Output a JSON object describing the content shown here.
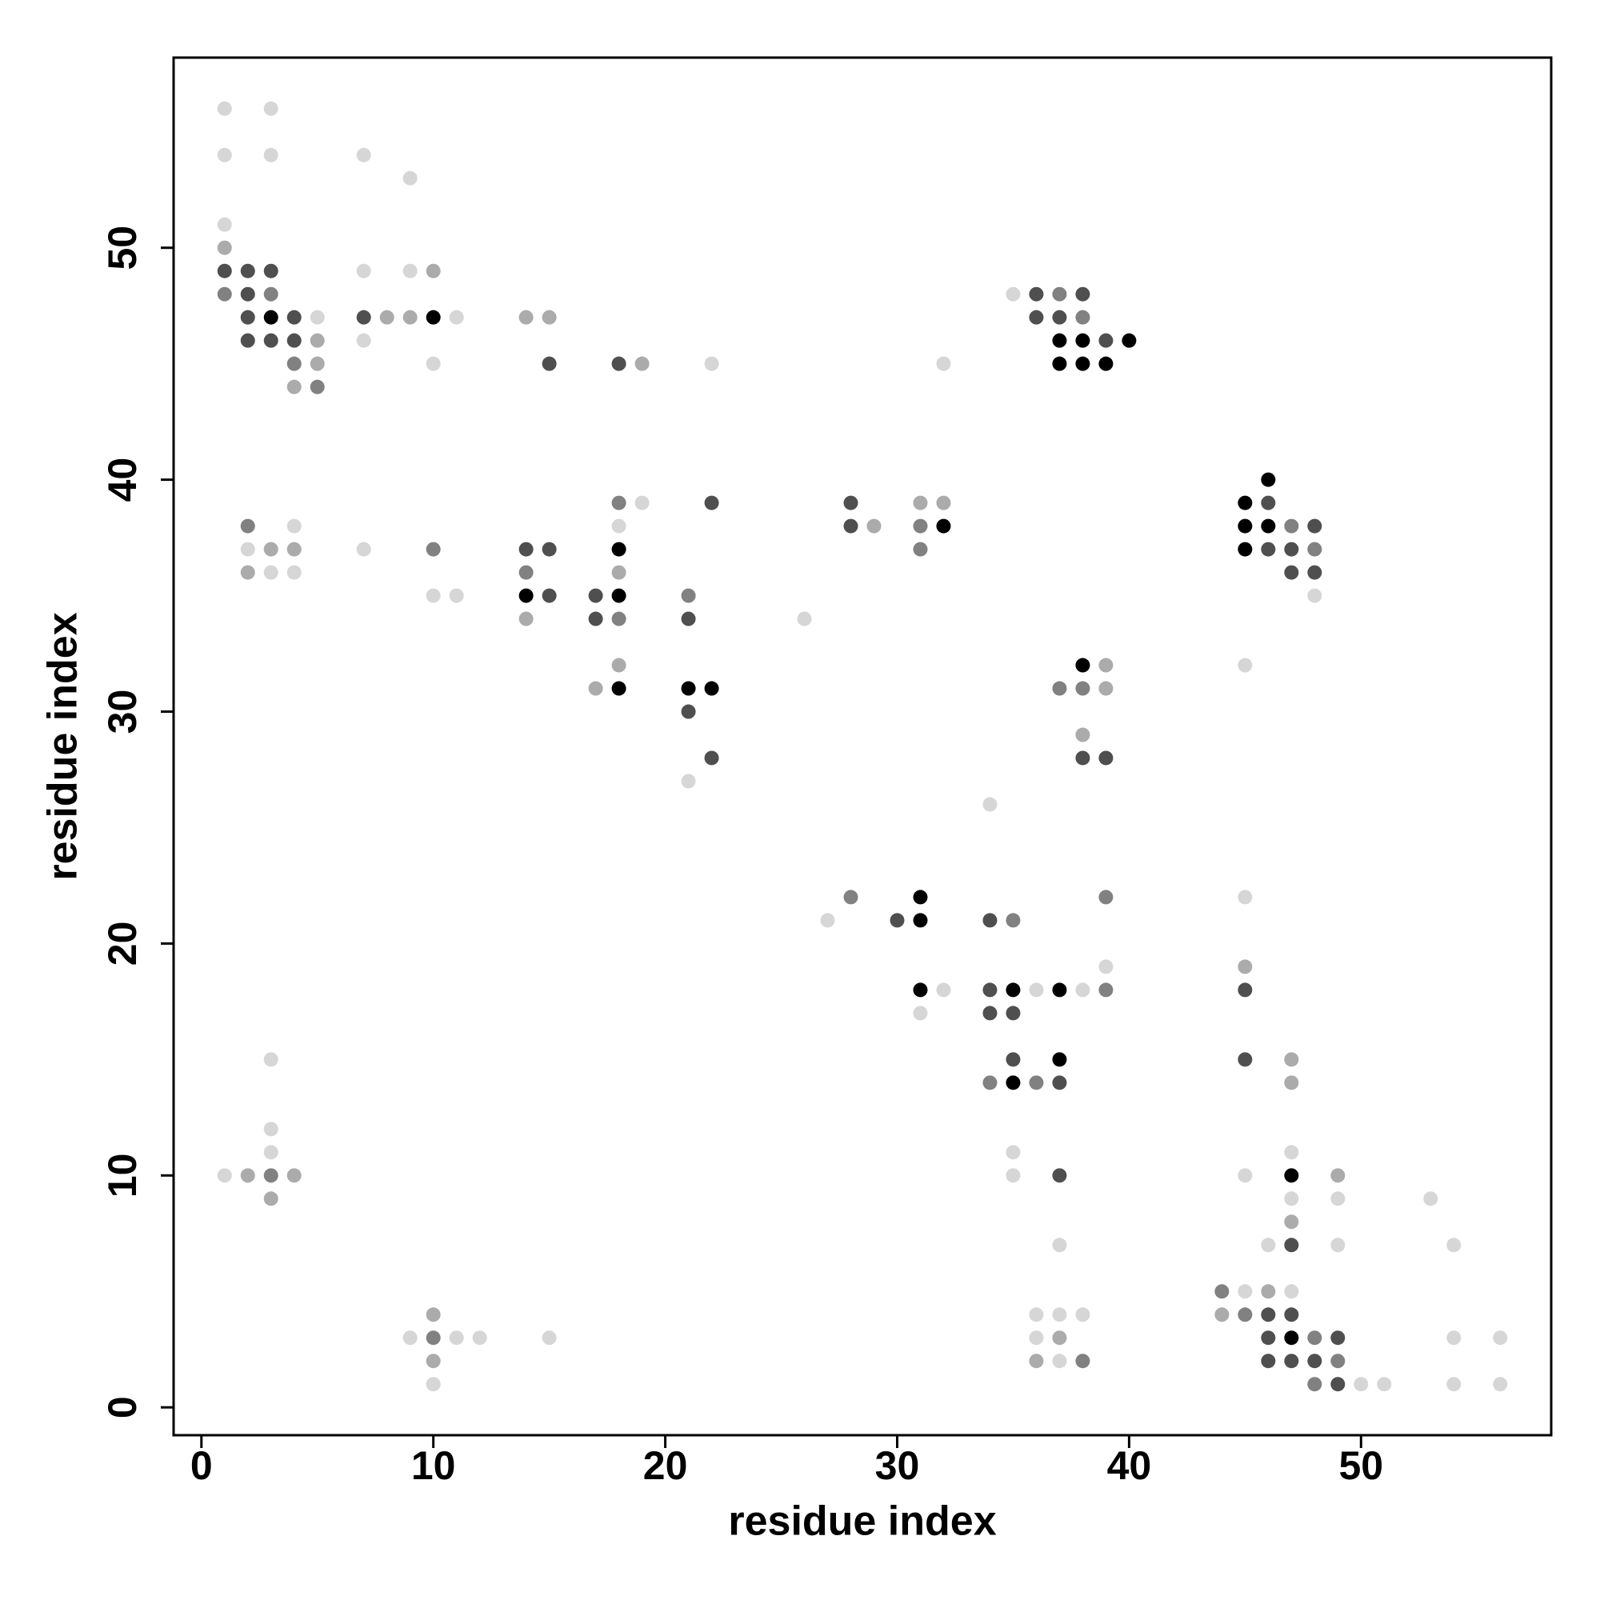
{
  "chart_data": {
    "type": "scatter",
    "xlabel": "residue index",
    "ylabel": "residue index",
    "xlim": [
      -1.2,
      58.2
    ],
    "ylim": [
      -1.2,
      58.2
    ],
    "xticks": [
      0,
      10,
      20,
      30,
      40,
      50
    ],
    "yticks": [
      0,
      10,
      20,
      30,
      40,
      50
    ],
    "grid": false,
    "series": [
      {
        "color": "#d6d6d6",
        "x": [
          1,
          3,
          1,
          3,
          7,
          9,
          1,
          7,
          9,
          35,
          5,
          11,
          7,
          10,
          22,
          32,
          19,
          4,
          18,
          2,
          7,
          3,
          4,
          10,
          11,
          48,
          26,
          45,
          21,
          34,
          45,
          27,
          39,
          32,
          36,
          38,
          31,
          3,
          3,
          3,
          35,
          47,
          1,
          35,
          45,
          47,
          49,
          53,
          37,
          46,
          49,
          54,
          45,
          47,
          36,
          37,
          38,
          9,
          11,
          12,
          15,
          36,
          54,
          56,
          37,
          10,
          50,
          51,
          54,
          56
        ],
        "y": [
          56,
          56,
          54,
          54,
          54,
          53,
          51,
          49,
          49,
          48,
          47,
          47,
          46,
          45,
          45,
          45,
          39,
          38,
          38,
          37,
          37,
          36,
          36,
          35,
          35,
          35,
          34,
          32,
          27,
          26,
          22,
          21,
          19,
          18,
          18,
          18,
          17,
          15,
          12,
          11,
          11,
          11,
          10,
          10,
          10,
          9,
          9,
          9,
          7,
          7,
          7,
          7,
          5,
          5,
          4,
          4,
          4,
          3,
          3,
          3,
          3,
          3,
          3,
          3,
          2,
          1,
          1,
          1,
          1,
          1
        ]
      },
      {
        "color": "#ababab",
        "x": [
          1,
          10,
          8,
          9,
          14,
          15,
          5,
          5,
          19,
          4,
          31,
          32,
          29,
          3,
          4,
          2,
          18,
          14,
          18,
          39,
          17,
          39,
          38,
          45,
          47,
          47,
          2,
          4,
          49,
          3,
          47,
          46,
          10,
          44,
          37,
          10,
          36
        ],
        "y": [
          50,
          49,
          47,
          47,
          47,
          47,
          46,
          45,
          45,
          44,
          39,
          39,
          38,
          37,
          37,
          36,
          36,
          34,
          32,
          32,
          31,
          31,
          29,
          19,
          15,
          14,
          10,
          10,
          10,
          9,
          8,
          5,
          4,
          4,
          3,
          2,
          2
        ]
      },
      {
        "color": "#818181",
        "x": [
          1,
          3,
          37,
          38,
          4,
          5,
          18,
          2,
          31,
          47,
          10,
          31,
          48,
          14,
          21,
          18,
          37,
          38,
          28,
          39,
          35,
          39,
          34,
          36,
          3,
          44,
          45,
          10,
          48,
          38,
          49,
          48
        ],
        "y": [
          48,
          48,
          48,
          47,
          45,
          44,
          39,
          38,
          38,
          38,
          37,
          37,
          37,
          36,
          35,
          34,
          31,
          31,
          22,
          22,
          21,
          18,
          14,
          14,
          10,
          5,
          4,
          3,
          3,
          2,
          2,
          1
        ]
      },
      {
        "color": "#4f4f4f",
        "x": [
          1,
          2,
          3,
          2,
          36,
          38,
          2,
          4,
          7,
          36,
          37,
          2,
          3,
          4,
          39,
          15,
          18,
          22,
          28,
          46,
          28,
          48,
          14,
          15,
          46,
          47,
          47,
          48,
          15,
          17,
          17,
          21,
          21,
          22,
          38,
          39,
          30,
          34,
          34,
          45,
          34,
          35,
          35,
          45,
          37,
          37,
          47,
          46,
          47,
          46,
          49,
          46,
          47,
          48,
          49
        ],
        "y": [
          49,
          49,
          49,
          48,
          48,
          48,
          47,
          47,
          47,
          47,
          47,
          46,
          46,
          46,
          46,
          45,
          45,
          39,
          39,
          39,
          38,
          38,
          37,
          37,
          37,
          37,
          36,
          36,
          35,
          35,
          34,
          34,
          30,
          28,
          28,
          28,
          21,
          21,
          18,
          18,
          17,
          17,
          15,
          15,
          14,
          10,
          7,
          4,
          4,
          3,
          3,
          2,
          2,
          2,
          1
        ]
      },
      {
        "color": "#000000",
        "x": [
          3,
          10,
          37,
          38,
          40,
          37,
          38,
          39,
          46,
          45,
          32,
          45,
          46,
          18,
          45,
          14,
          18,
          38,
          18,
          21,
          22,
          31,
          31,
          31,
          35,
          37,
          37,
          35,
          47,
          47
        ],
        "y": [
          47,
          47,
          46,
          46,
          46,
          45,
          45,
          45,
          40,
          39,
          38,
          38,
          38,
          37,
          37,
          35,
          35,
          32,
          31,
          31,
          31,
          22,
          21,
          18,
          18,
          18,
          15,
          14,
          10,
          3
        ]
      }
    ]
  }
}
